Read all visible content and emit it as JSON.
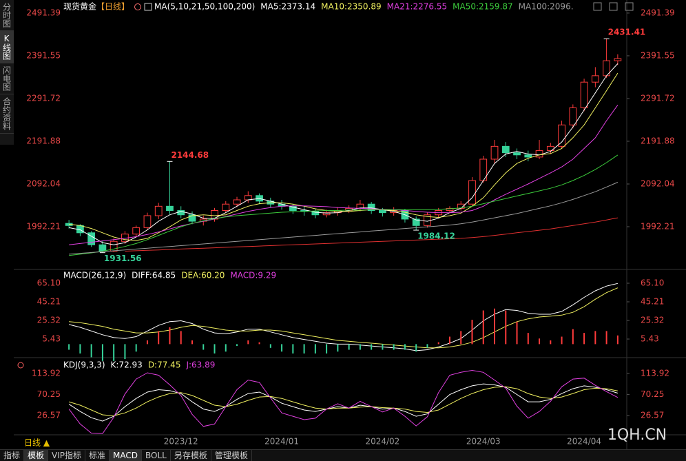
{
  "sidebar": [
    {
      "label": "分时图",
      "active": false
    },
    {
      "label": "K线图",
      "active": true
    },
    {
      "label": "闪电图",
      "active": false
    },
    {
      "label": "合约资料",
      "active": false
    }
  ],
  "period_selector": "日线 ▲",
  "watermark": "1QH.CN",
  "toolbar": [
    {
      "label": "指标",
      "active": false
    },
    {
      "label": "模板",
      "active": true
    },
    {
      "label": "VIP指标",
      "active": false
    },
    {
      "label": "标准",
      "active": false
    },
    {
      "label": "MACD",
      "active": true
    },
    {
      "label": "BOLL",
      "active": false
    },
    {
      "label": "另存模板",
      "active": false
    },
    {
      "label": "管理模板",
      "active": false
    }
  ],
  "chart_data": [
    {
      "type": "candlestick",
      "title": "现货黄金",
      "period": "【日线】",
      "indicator_label": "MA(5,10,21,50,100,200)",
      "up_color": "#ff3b3b",
      "down_color": "#36d39a",
      "categories": [
        null,
        null,
        null,
        null,
        null,
        null,
        null,
        null,
        null,
        null,
        "2023/12",
        null,
        null,
        null,
        null,
        null,
        null,
        null,
        null,
        "2024/01",
        null,
        null,
        null,
        null,
        null,
        null,
        null,
        null,
        "2024/02",
        null,
        null,
        null,
        null,
        null,
        null,
        null,
        null,
        "2024/03",
        null,
        null,
        null,
        null,
        null,
        null,
        null,
        null,
        "2024/04",
        null,
        null,
        null
      ],
      "candles": {
        "open": [
          2000,
          1995,
          1978,
          1950,
          1935,
          1958,
          1975,
          1990,
          2018,
          2040,
          2030,
          2020,
          2005,
          2010,
          2030,
          2045,
          2055,
          2065,
          2052,
          2045,
          2040,
          2030,
          2028,
          2020,
          2025,
          2030,
          2035,
          2045,
          2030,
          2025,
          2030,
          2010,
          1995,
          2020,
          2030,
          2035,
          2045,
          2100,
          2150,
          2180,
          2165,
          2160,
          2155,
          2170,
          2180,
          2230,
          2270,
          2330,
          2345,
          2380
        ],
        "high": [
          2008,
          1998,
          1982,
          1960,
          1965,
          1982,
          1995,
          2025,
          2048,
          2144.68,
          2040,
          2028,
          2018,
          2036,
          2052,
          2062,
          2075,
          2070,
          2060,
          2055,
          2046,
          2040,
          2035,
          2032,
          2038,
          2042,
          2055,
          2050,
          2036,
          2038,
          2034,
          2016,
          2025,
          2036,
          2040,
          2052,
          2108,
          2158,
          2195,
          2190,
          2175,
          2170,
          2195,
          2188,
          2240,
          2278,
          2338,
          2365,
          2431.41,
          2395
        ],
        "low": [
          1988,
          1970,
          1945,
          1931.56,
          1933,
          1952,
          1968,
          1985,
          2010,
          2022,
          2012,
          1998,
          1995,
          2004,
          2024,
          2038,
          2048,
          2045,
          2038,
          2032,
          2022,
          2018,
          2012,
          2014,
          2018,
          2024,
          2028,
          2022,
          2016,
          2018,
          2002,
          1984.12,
          1990,
          2014,
          2024,
          2030,
          2040,
          2095,
          2140,
          2155,
          2150,
          2145,
          2150,
          2162,
          2175,
          2222,
          2262,
          2318,
          2340,
          2370
        ],
        "close": [
          1995,
          1978,
          1950,
          1935,
          1958,
          1975,
          1990,
          2018,
          2040,
          2030,
          2020,
          2005,
          2010,
          2030,
          2045,
          2055,
          2065,
          2052,
          2045,
          2040,
          2030,
          2028,
          2020,
          2025,
          2030,
          2035,
          2045,
          2030,
          2025,
          2030,
          2010,
          1995,
          2020,
          2030,
          2035,
          2045,
          2100,
          2150,
          2180,
          2165,
          2160,
          2155,
          2170,
          2180,
          2230,
          2270,
          2330,
          2345,
          2380,
          2385
        ]
      },
      "price_labels": [
        2144.68,
        2431.41,
        1931.56,
        1984.12
      ],
      "series": [
        {
          "name": "MA5:2373.14",
          "color": "#ffffff",
          "values": [
            1990,
            1985,
            1970,
            1955,
            1950,
            1955,
            1968,
            1985,
            2005,
            2020,
            2028,
            2022,
            2012,
            2012,
            2025,
            2040,
            2055,
            2058,
            2052,
            2045,
            2038,
            2032,
            2026,
            2024,
            2025,
            2030,
            2036,
            2036,
            2032,
            2028,
            2020,
            2008,
            2005,
            2012,
            2025,
            2035,
            2060,
            2100,
            2140,
            2162,
            2168,
            2162,
            2160,
            2168,
            2190,
            2225,
            2265,
            2305,
            2345,
            2373.14
          ]
        },
        {
          "name": "MA10:2350.89",
          "color": "#f0f060",
          "values": [
            1998,
            1995,
            1988,
            1978,
            1968,
            1962,
            1960,
            1965,
            1978,
            1992,
            2008,
            2018,
            2020,
            2018,
            2020,
            2030,
            2040,
            2046,
            2048,
            2048,
            2045,
            2040,
            2034,
            2030,
            2028,
            2028,
            2030,
            2032,
            2032,
            2030,
            2026,
            2020,
            2016,
            2014,
            2018,
            2024,
            2040,
            2060,
            2090,
            2118,
            2140,
            2152,
            2160,
            2163,
            2175,
            2200,
            2230,
            2270,
            2310,
            2350.89
          ]
        },
        {
          "name": "MA21:2276.55",
          "color": "#e040e0",
          "values": [
            1950,
            1953,
            1956,
            1959,
            1962,
            1965,
            1969,
            1974,
            1980,
            1987,
            1994,
            2000,
            2005,
            2010,
            2016,
            2022,
            2028,
            2033,
            2037,
            2040,
            2041,
            2041,
            2040,
            2039,
            2037,
            2036,
            2035,
            2034,
            2033,
            2032,
            2030,
            2028,
            2026,
            2025,
            2025,
            2026,
            2030,
            2040,
            2055,
            2068,
            2080,
            2092,
            2105,
            2118,
            2132,
            2150,
            2175,
            2200,
            2240,
            2276.55
          ]
        },
        {
          "name": "MA50:2159.87",
          "color": "#3ccc3c",
          "values": [
            1925,
            1928,
            1931,
            1935,
            1940,
            1946,
            1953,
            1962,
            1972,
            1982,
            1992,
            2000,
            2006,
            2011,
            2015,
            2018,
            2020,
            2022,
            2024,
            2026,
            2027,
            2028,
            2029,
            2030,
            2030,
            2031,
            2031,
            2032,
            2032,
            2032,
            2032,
            2032,
            2032,
            2033,
            2034,
            2036,
            2040,
            2046,
            2052,
            2058,
            2064,
            2070,
            2076,
            2082,
            2090,
            2100,
            2112,
            2126,
            2142,
            2159.87
          ]
        },
        {
          "name": "MA100:2096.",
          "color": "#9a9a9a",
          "values": [
            1928,
            1930,
            1932,
            1934,
            1936,
            1938,
            1940,
            1942,
            1944,
            1946,
            1948,
            1950,
            1952,
            1954,
            1956,
            1958,
            1960,
            1962,
            1964,
            1966,
            1968,
            1970,
            1972,
            1974,
            1976,
            1978,
            1980,
            1982,
            1984,
            1986,
            1988,
            1990,
            1992,
            1994,
            1996,
            1999,
            2003,
            2008,
            2013,
            2018,
            2023,
            2029,
            2035,
            2041,
            2048,
            2056,
            2065,
            2074,
            2085,
            2096
          ]
        },
        {
          "color": "#e03030",
          "values": [
            null,
            null,
            null,
            null,
            null,
            1935,
            1936,
            1937,
            1938,
            1939,
            1940,
            1941,
            1942,
            1943,
            1944,
            1945,
            1946,
            1947,
            1948,
            1949,
            1950,
            1951,
            1952,
            1953,
            1954,
            1955,
            1956,
            1957,
            1958,
            1959,
            1960,
            1961,
            1962,
            1963,
            1964,
            1965,
            1967,
            1969,
            1972,
            1975,
            1978,
            1981,
            1984,
            1987,
            1991,
            1995,
            1999,
            2003,
            2008,
            2013
          ]
        }
      ],
      "ylim": [
        1894,
        2509
      ],
      "yticks": [
        2491.39,
        2391.55,
        2291.72,
        2191.88,
        2092.04,
        1992.21
      ],
      "tick_color": "#e84848"
    },
    {
      "type": "macd",
      "indicator_label": "MACD(26,12,9)",
      "up_color": "#ff3b3b",
      "down_color": "#36d39a",
      "series": [
        {
          "name": "DIFF:64.85",
          "color": "#ffffff",
          "values": [
            21,
            18,
            14,
            10,
            7,
            6,
            8,
            14,
            20,
            24,
            25,
            22,
            16,
            12,
            11,
            13,
            16,
            16,
            13,
            10,
            7,
            5,
            3,
            1,
            0,
            0,
            -1,
            -2,
            -3,
            -4,
            -5,
            -7,
            -6,
            -3,
            1,
            6,
            15,
            25,
            32,
            37,
            36,
            33,
            32,
            32,
            35,
            42,
            50,
            57,
            62,
            64.85
          ]
        },
        {
          "name": "DEA:60.20",
          "color": "#f0f060",
          "values": [
            24,
            23,
            21,
            19,
            16,
            14,
            12,
            12,
            13,
            15,
            18,
            20,
            19,
            17,
            15,
            14,
            14,
            15,
            15,
            14,
            12,
            10,
            8,
            6,
            4,
            3,
            2,
            1,
            0,
            -1,
            -2,
            -3,
            -4,
            -4,
            -3,
            -1,
            2,
            7,
            13,
            19,
            24,
            27,
            29,
            30,
            31,
            34,
            40,
            48,
            55,
            60.2
          ]
        },
        {
          "name": "MACD:9.29",
          "color": "#e040e0",
          "style": "histogram",
          "values": [
            -6,
            -10,
            -14,
            -18,
            -18,
            -16,
            -8,
            4,
            14,
            18,
            14,
            4,
            -6,
            -10,
            -8,
            -2,
            4,
            2,
            -4,
            -8,
            -10,
            -10,
            -10,
            -10,
            -8,
            -6,
            -6,
            -6,
            -6,
            -6,
            -6,
            -8,
            -4,
            2,
            8,
            14,
            26,
            36,
            38,
            36,
            24,
            12,
            6,
            4,
            8,
            16,
            12,
            14,
            14,
            9.29
          ]
        }
      ],
      "ylim": [
        -13.7,
        79.1
      ],
      "yticks": [
        {
          "value": 65.1,
          "label": "65.10"
        },
        45.21,
        25.32,
        5.43
      ],
      "tick_color": "#e84848"
    },
    {
      "type": "line",
      "indicator_label": "KDJ(9,3,3)",
      "series": [
        {
          "name": "K:72.93",
          "color": "#ffffff",
          "values": [
            50,
            35,
            22,
            15,
            25,
            45,
            62,
            75,
            80,
            78,
            72,
            55,
            40,
            35,
            45,
            60,
            72,
            75,
            65,
            52,
            45,
            38,
            35,
            40,
            45,
            42,
            48,
            45,
            40,
            42,
            35,
            25,
            30,
            50,
            70,
            80,
            88,
            92,
            90,
            85,
            70,
            55,
            55,
            60,
            72,
            82,
            88,
            85,
            80,
            72.93
          ]
        },
        {
          "name": "D:77.45",
          "color": "#f0f060",
          "values": [
            55,
            48,
            38,
            28,
            26,
            32,
            42,
            55,
            65,
            72,
            74,
            68,
            58,
            48,
            45,
            50,
            58,
            65,
            66,
            62,
            55,
            48,
            42,
            40,
            42,
            42,
            44,
            45,
            43,
            42,
            40,
            35,
            33,
            38,
            50,
            62,
            72,
            80,
            85,
            86,
            82,
            72,
            65,
            62,
            65,
            72,
            80,
            83,
            82,
            77.45
          ]
        },
        {
          "name": "J:63.89",
          "color": "#e040e0",
          "values": [
            40,
            9,
            -10,
            -11,
            23,
            71,
            102,
            115,
            110,
            90,
            68,
            29,
            4,
            9,
            45,
            80,
            100,
            95,
            63,
            32,
            25,
            18,
            21,
            40,
            51,
            42,
            56,
            45,
            34,
            42,
            25,
            5,
            24,
            74,
            110,
            116,
            120,
            116,
            100,
            83,
            46,
            21,
            35,
            56,
            86,
            102,
            104,
            89,
            76,
            63.89
          ]
        }
      ],
      "ylim": [
        -12,
        145
      ],
      "yticks": [
        113.92,
        70.25,
        26.57
      ],
      "tick_color": "#e84848"
    }
  ]
}
